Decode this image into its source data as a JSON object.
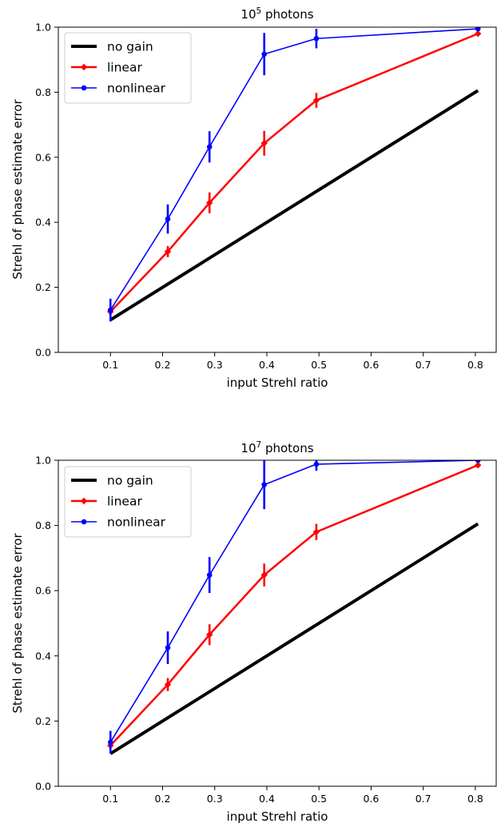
{
  "chart_data": [
    {
      "type": "line",
      "title_base": "10",
      "title_exp": "5",
      "title_rest": " photons",
      "xlabel": "input Strehl ratio",
      "ylabel": "Strehl of phase estimate error",
      "xlim": [
        0.0,
        0.84
      ],
      "ylim": [
        0.0,
        1.0
      ],
      "xticks": [
        "0.1",
        "0.2",
        "0.3",
        "0.4",
        "0.5",
        "0.6",
        "0.7",
        "0.8"
      ],
      "yticks": [
        "0.0",
        "0.2",
        "0.4",
        "0.6",
        "0.8",
        "1.0"
      ],
      "legend_position": "top-left",
      "grid": false,
      "series": [
        {
          "name": "no gain",
          "color": "#000000",
          "marker": "none",
          "x": [
            0.1,
            0.805
          ],
          "y": [
            0.1,
            0.805
          ],
          "err": [
            0,
            0
          ]
        },
        {
          "name": "linear",
          "color": "#ff0000",
          "marker": "diamond",
          "x": [
            0.1,
            0.21,
            0.29,
            0.395,
            0.495,
            0.805
          ],
          "y": [
            0.125,
            0.31,
            0.46,
            0.643,
            0.775,
            0.98
          ],
          "err": [
            0.01,
            0.017,
            0.032,
            0.038,
            0.023,
            0.005
          ]
        },
        {
          "name": "nonlinear",
          "color": "#0000ff",
          "marker": "circle",
          "x": [
            0.1,
            0.21,
            0.29,
            0.395,
            0.495,
            0.805
          ],
          "y": [
            0.13,
            0.41,
            0.632,
            0.917,
            0.965,
            0.995
          ],
          "err": [
            0.035,
            0.045,
            0.048,
            0.065,
            0.03,
            0.005
          ]
        }
      ]
    },
    {
      "type": "line",
      "title_base": "10",
      "title_exp": "7",
      "title_rest": " photons",
      "xlabel": "input Strehl ratio",
      "ylabel": "Strehl of phase estimate error",
      "xlim": [
        0.0,
        0.84
      ],
      "ylim": [
        0.0,
        1.0
      ],
      "xticks": [
        "0.1",
        "0.2",
        "0.3",
        "0.4",
        "0.5",
        "0.6",
        "0.7",
        "0.8"
      ],
      "yticks": [
        "0.0",
        "0.2",
        "0.4",
        "0.6",
        "0.8",
        "1.0"
      ],
      "legend_position": "top-left",
      "grid": false,
      "series": [
        {
          "name": "no gain",
          "color": "#000000",
          "marker": "none",
          "x": [
            0.1,
            0.805
          ],
          "y": [
            0.1,
            0.805
          ],
          "err": [
            0,
            0
          ]
        },
        {
          "name": "linear",
          "color": "#ff0000",
          "marker": "diamond",
          "x": [
            0.1,
            0.21,
            0.29,
            0.395,
            0.495,
            0.805
          ],
          "y": [
            0.125,
            0.312,
            0.465,
            0.648,
            0.78,
            0.985
          ],
          "err": [
            0.01,
            0.02,
            0.032,
            0.035,
            0.025,
            0.005
          ]
        },
        {
          "name": "nonlinear",
          "color": "#0000ff",
          "marker": "circle",
          "x": [
            0.1,
            0.21,
            0.29,
            0.395,
            0.495,
            0.805
          ],
          "y": [
            0.135,
            0.425,
            0.648,
            0.925,
            0.988,
            1.0
          ],
          "err": [
            0.035,
            0.05,
            0.055,
            0.075,
            0.02,
            0.0
          ]
        }
      ]
    }
  ]
}
